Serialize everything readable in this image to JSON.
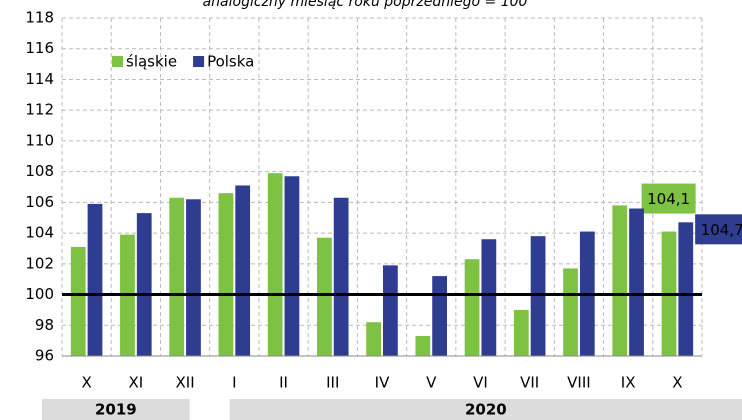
{
  "chart_data": {
    "type": "bar",
    "title": "analogiczny miesiąc roku poprzedniego = 100",
    "categories": [
      "X",
      "XI",
      "XII",
      "I",
      "II",
      "III",
      "IV",
      "V",
      "VI",
      "VII",
      "VIII",
      "IX",
      "X"
    ],
    "series": [
      {
        "name": "śląskie",
        "color": "#7dc242",
        "values": [
          103.1,
          103.9,
          106.3,
          106.6,
          107.9,
          103.7,
          98.2,
          97.3,
          102.3,
          99.0,
          101.7,
          105.8,
          104.1
        ],
        "value_labels": [
          null,
          null,
          null,
          null,
          null,
          null,
          null,
          null,
          null,
          null,
          null,
          null,
          "104,1"
        ]
      },
      {
        "name": "Polska",
        "color": "#2e3d8f",
        "values": [
          105.9,
          105.3,
          106.2,
          107.1,
          107.7,
          106.3,
          101.9,
          101.2,
          103.6,
          103.8,
          104.1,
          105.6,
          104.7
        ],
        "value_labels": [
          null,
          null,
          null,
          null,
          null,
          null,
          null,
          null,
          null,
          null,
          null,
          null,
          "104,7"
        ]
      }
    ],
    "ylim": [
      96,
      118
    ],
    "yticks": [
      96,
      98,
      100,
      102,
      104,
      106,
      108,
      110,
      112,
      114,
      116,
      118
    ],
    "reference_line": 100,
    "grid": true,
    "legend": "top-left",
    "year_groups": [
      {
        "label": "2019",
        "count": 3
      },
      {
        "label": "2020",
        "count": 10
      }
    ]
  }
}
